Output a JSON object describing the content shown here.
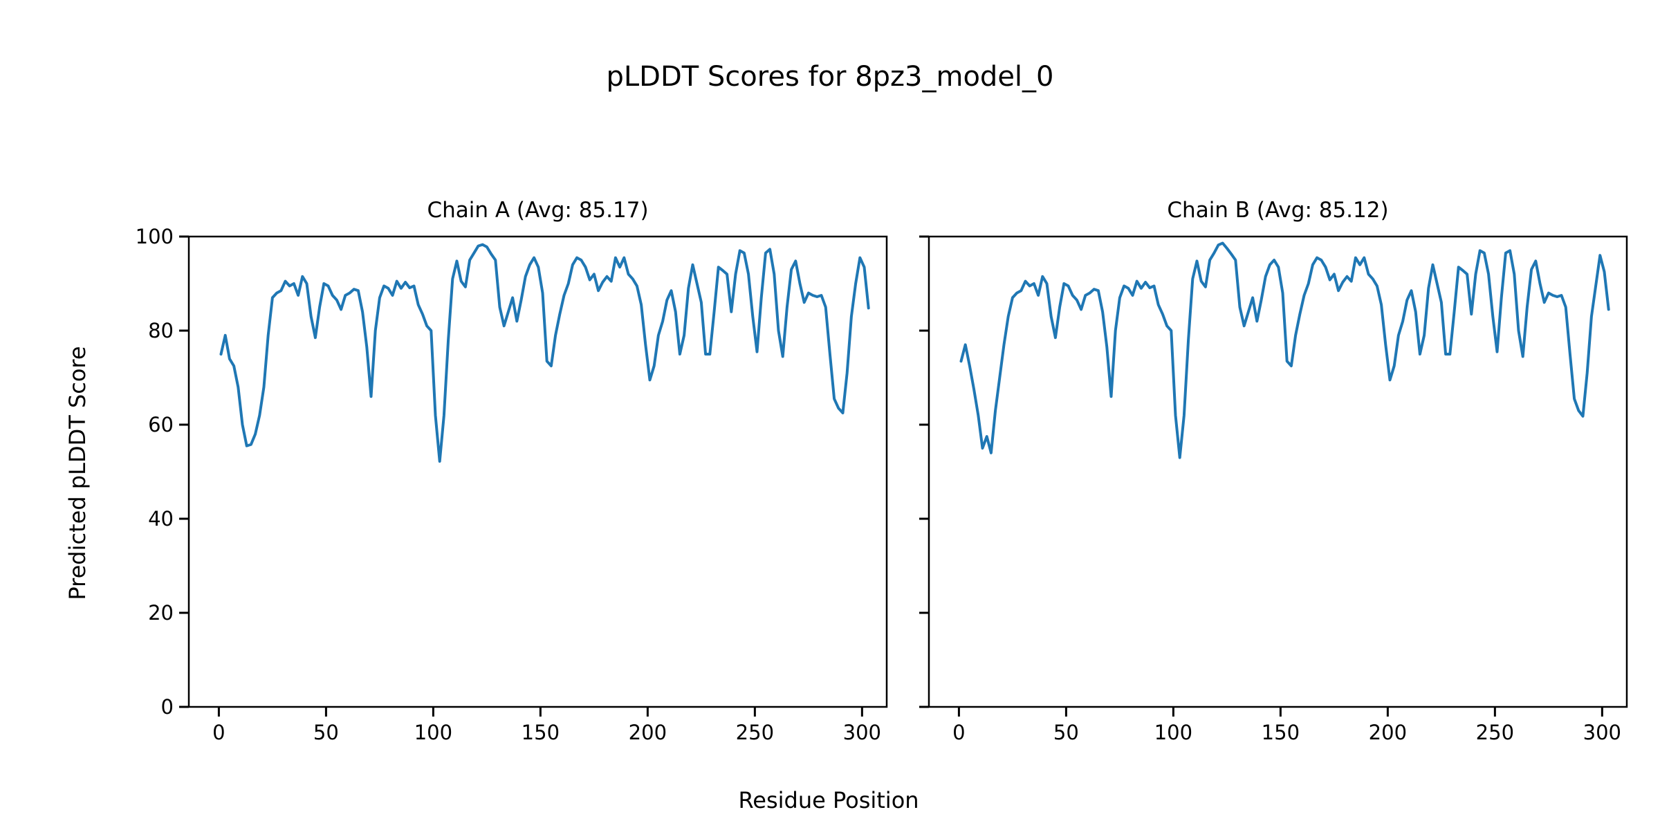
{
  "figure": {
    "title": "pLDDT Scores for 8pz3_model_0",
    "xlabel": "Residue Position",
    "ylabel": "Predicted pLDDT Score",
    "background_color": "#ffffff",
    "text_color": "#000000",
    "line_color": "#1f77b4",
    "spine_color": "#000000"
  },
  "chart_data": [
    {
      "type": "line",
      "title": "Chain A (Avg: 85.17)",
      "chain": "A",
      "avg": 85.17,
      "xlim": [
        -14,
        311.5
      ],
      "ylim": [
        0,
        100
      ],
      "xticks": [
        0,
        50,
        100,
        150,
        200,
        250,
        300
      ],
      "yticks": [
        0,
        20,
        40,
        60,
        80,
        100
      ],
      "show_ytick_labels": true,
      "grid": false,
      "legend": null,
      "line_color": "#1f77b4",
      "x_start": 1,
      "x_step": 2,
      "values": [
        75,
        79,
        74,
        72.5,
        68,
        60,
        55.5,
        55.8,
        58,
        62,
        68,
        79,
        87,
        88,
        88.5,
        90.5,
        89.5,
        90,
        87.5,
        91.5,
        90,
        83,
        78.5,
        85,
        90,
        89.5,
        87.5,
        86.5,
        84.5,
        87.5,
        88,
        88.8,
        88.5,
        84,
        76.5,
        66,
        80,
        87,
        89.5,
        89,
        87.5,
        90.5,
        89,
        90.3,
        89.1,
        89.5,
        85.5,
        83.5,
        81,
        80,
        62,
        52.2,
        62,
        78,
        91,
        94.8,
        90.5,
        89.3,
        95,
        96.5,
        98,
        98.3,
        97.8,
        96.3,
        95,
        85,
        81,
        84,
        87,
        82,
        86.5,
        91.5,
        94,
        95.5,
        93.5,
        88,
        73.5,
        72.5,
        79,
        83.5,
        87.5,
        90,
        94,
        95.5,
        95,
        93.5,
        90.8,
        92,
        88.5,
        90.3,
        91.5,
        90.5,
        95.5,
        93.5,
        95.5,
        92,
        91,
        89.5,
        85.5,
        77,
        69.5,
        72.5,
        79,
        82,
        86.5,
        88.5,
        84,
        75,
        79,
        89,
        94,
        90,
        86,
        75,
        75,
        84,
        93.5,
        92.8,
        92,
        84,
        92,
        97,
        96.5,
        92,
        83,
        75.5,
        87,
        96.5,
        97.3,
        92,
        80,
        74.5,
        85,
        93,
        94.8,
        90,
        86,
        88,
        87.5,
        87.2,
        87.5,
        85,
        75,
        65.5,
        63.5,
        62.5,
        71,
        83,
        90,
        95.5,
        93.5,
        84.8
      ]
    },
    {
      "type": "line",
      "title": "Chain B (Avg: 85.12)",
      "chain": "B",
      "avg": 85.12,
      "xlim": [
        -14,
        311.5
      ],
      "ylim": [
        0,
        100
      ],
      "xticks": [
        0,
        50,
        100,
        150,
        200,
        250,
        300
      ],
      "yticks": [
        0,
        20,
        40,
        60,
        80,
        100
      ],
      "show_ytick_labels": false,
      "grid": false,
      "legend": null,
      "line_color": "#1f77b4",
      "x_start": 1,
      "x_step": 2,
      "values": [
        73.5,
        77,
        72.5,
        67.5,
        62,
        55,
        57.5,
        54,
        63,
        70,
        77,
        83,
        87,
        88,
        88.5,
        90.5,
        89.5,
        90,
        87.5,
        91.5,
        90,
        83,
        78.5,
        85,
        90,
        89.5,
        87.5,
        86.5,
        84.5,
        87.5,
        88,
        88.8,
        88.5,
        84,
        76.5,
        66,
        80,
        87,
        89.5,
        89,
        87.5,
        90.5,
        89,
        90.3,
        89.1,
        89.5,
        85.5,
        83.5,
        81,
        80,
        62,
        53,
        62,
        78,
        91,
        94.8,
        90.5,
        89.3,
        95,
        96.5,
        98.2,
        98.6,
        97.5,
        96.3,
        95,
        85,
        81,
        84,
        87,
        82,
        86.5,
        91.5,
        94,
        95,
        93.5,
        88,
        73.5,
        72.5,
        79,
        83.5,
        87.5,
        90,
        94,
        95.5,
        95,
        93.5,
        90.8,
        92,
        88.5,
        90.3,
        91.5,
        90.5,
        95.5,
        94,
        95.5,
        92,
        91,
        89.5,
        85.5,
        77,
        69.5,
        72.5,
        79,
        82,
        86.5,
        88.5,
        84,
        75,
        79,
        89,
        94,
        90,
        86,
        75,
        75,
        84,
        93.5,
        92.8,
        92,
        83.5,
        92,
        97,
        96.5,
        92,
        83,
        75.5,
        87,
        96.5,
        97,
        92,
        80,
        74.5,
        85,
        93,
        94.8,
        90,
        86,
        88,
        87.5,
        87.2,
        87.5,
        85,
        75,
        65.5,
        63,
        61.8,
        71,
        83,
        89.5,
        96,
        92.5,
        84.5
      ]
    }
  ]
}
